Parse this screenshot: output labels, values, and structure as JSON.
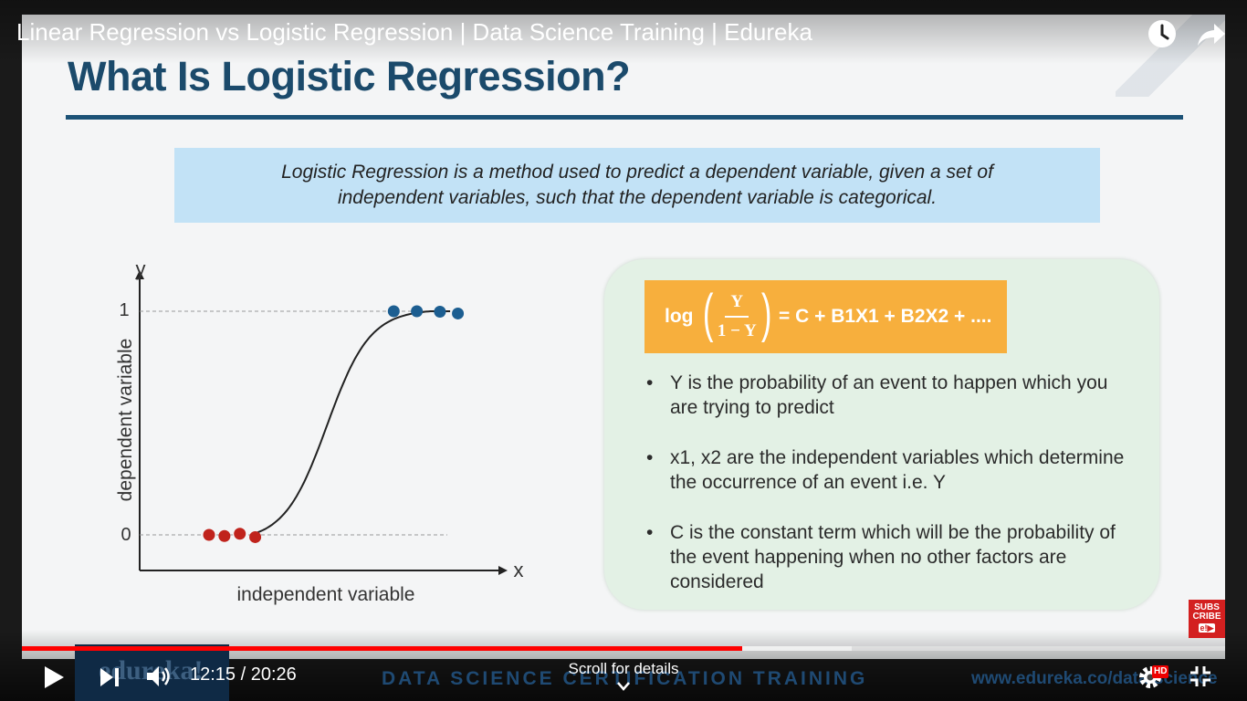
{
  "video": {
    "title": "Linear Regression vs Logistic Regression | Data Science Training | Edureka"
  },
  "slide": {
    "heading": "What Is Logistic Regression?",
    "definition": "Logistic Regression is a method used to predict a dependent variable, given a set of independent variables, such that the dependent variable is categorical.",
    "formula": {
      "log": "log",
      "numerator": "Y",
      "denominator": "1 − Y",
      "rhs": "= C + B1X1 + B2X2 + ...."
    },
    "bullets": [
      "Y is the probability of an event to happen which you are trying to predict",
      "x1, x2 are the independent variables which determine the occurrence of an event i.e. Y",
      "C is the constant term which will be the probability of the event happening when no other factors are considered"
    ],
    "banner_text": "DATA SCIENCE CERTIFICATION TRAINING",
    "banner_url": "www.edureka.co/data-science",
    "logo": "edureka!"
  },
  "chart_data": {
    "type": "scatter",
    "xlabel": "independent variable",
    "ylabel": "dependent variable",
    "x_axis_letter": "x",
    "y_axis_letter": "y",
    "ytick_labels": [
      "0",
      "1"
    ],
    "ylim": [
      0,
      1
    ],
    "curve": "sigmoid",
    "series": [
      {
        "color": "#c0231c",
        "points": [
          [
            0.0,
            0.0
          ],
          [
            0.06,
            -0.005
          ],
          [
            0.12,
            0.005
          ],
          [
            0.18,
            -0.01
          ]
        ]
      },
      {
        "color": "#1c5e91",
        "points": [
          [
            0.72,
            1.0
          ],
          [
            0.81,
            1.0
          ],
          [
            0.9,
            0.998
          ],
          [
            0.97,
            0.99
          ]
        ]
      }
    ],
    "grid": false
  },
  "player": {
    "current_time": "12:15",
    "duration": "20:26",
    "time_separator": " / ",
    "progress_fraction": 0.599,
    "buffered_fraction": 0.69,
    "scroll_hint": "Scroll for details",
    "hd_badge": "HD",
    "subscribe_text": "SUBS CRIBE",
    "subscribe_tag": "e!▶",
    "icons": [
      "watch-later-icon",
      "share-icon",
      "play-icon",
      "next-icon",
      "volume-icon",
      "settings-icon",
      "exit-fullscreen-icon",
      "chevron-down-icon"
    ]
  }
}
